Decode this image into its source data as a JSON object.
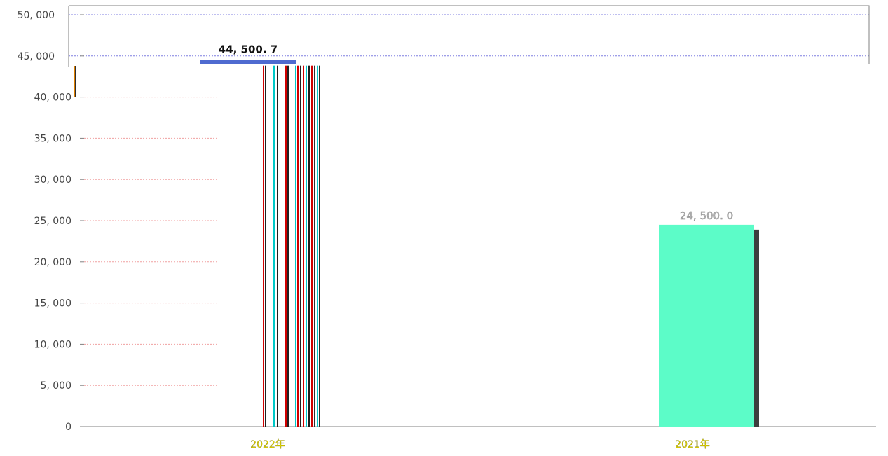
{
  "chart_data": {
    "type": "bar",
    "categories": [
      "2022",
      "2021"
    ],
    "values": [
      44500.7,
      24500
    ],
    "data_labels": [
      "44, 500. 7",
      "24, 500. 0"
    ],
    "ylim": [
      0,
      50000
    ],
    "yticks": [
      0,
      5000,
      10000,
      15000,
      20000,
      25000,
      30000,
      35000,
      40000,
      45000,
      50000
    ],
    "ytick_labels": [
      "0",
      "5, 000",
      "10, 000",
      "15, 000",
      "20, 000",
      "25, 000",
      "30, 000",
      "35, 000",
      "40, 000",
      "45, 000",
      "50, 000"
    ],
    "xtick_labels": [
      "2022年",
      "2021年"
    ],
    "grid": true,
    "title": "",
    "xlabel": "",
    "ylabel": "",
    "colors": {
      "bar_2021": "#5cfcc8",
      "bar_2021_shadow": "#3d3d3d",
      "highlight_bar": "#4f6bd0",
      "grid_top": "#7f7fe0",
      "grid_lower": "#f0a0a0",
      "axis": "#808080"
    }
  }
}
